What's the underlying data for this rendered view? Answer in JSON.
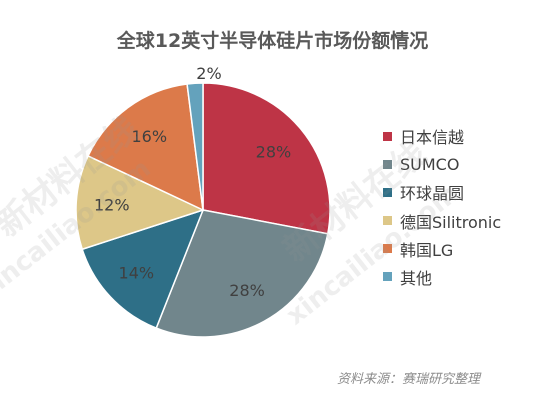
{
  "chart_data": {
    "type": "pie",
    "title": "全球12英寸半导体硅片市场份额情况",
    "categories": [
      "日本信越",
      "SUMCO",
      "环球晶圆",
      "德国Silitronic",
      "韩国LG",
      "其他"
    ],
    "values": [
      28,
      28,
      14,
      12,
      16,
      2
    ],
    "data_labels": [
      "28%",
      "28%",
      "14%",
      "12%",
      "16%",
      "2%"
    ],
    "colors": [
      "#BE3446",
      "#71868C",
      "#2E6F87",
      "#DDC788",
      "#DC7A4A",
      "#64A2BC"
    ],
    "legend_position": "right",
    "start": "12 o'clock",
    "direction": "clockwise"
  },
  "source_note": "资料来源：赛瑞研究整理",
  "watermark": [
    "新材料在线",
    "xincailiao.com"
  ]
}
